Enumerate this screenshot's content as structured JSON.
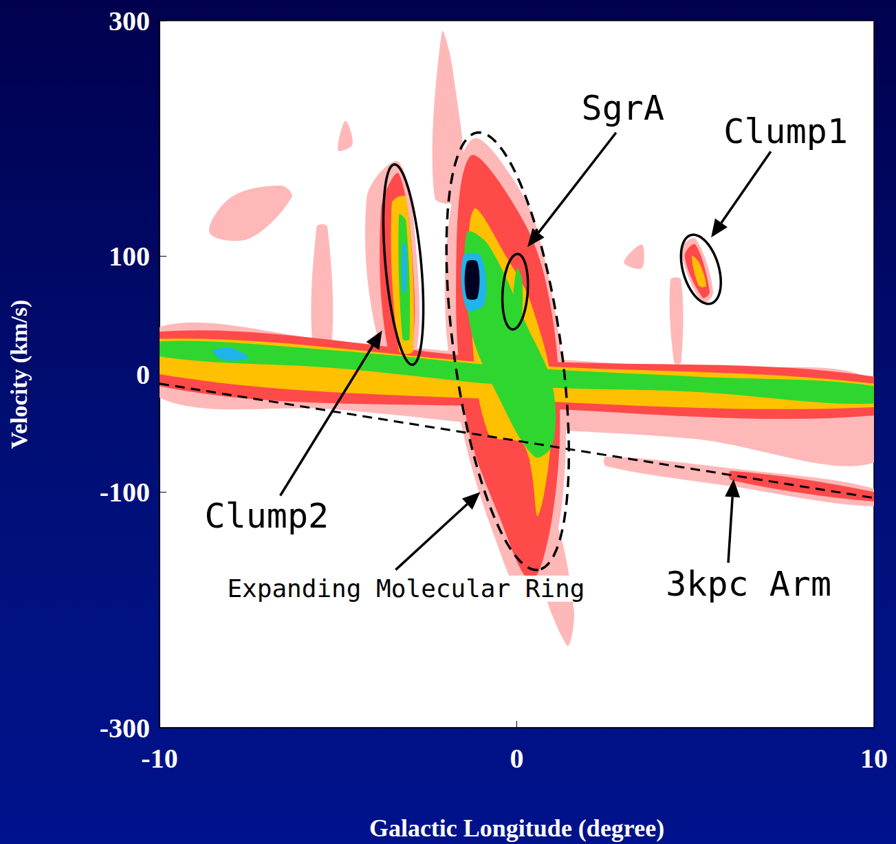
{
  "chart_data": {
    "type": "contour",
    "xlabel": "Galactic Longitude (degree)",
    "ylabel": "Velocity (km/s)",
    "xlim": [
      -10,
      10
    ],
    "ylim": [
      -300,
      300
    ],
    "xticks": [
      -10,
      0,
      10
    ],
    "yticks": [
      -300,
      -100,
      0,
      100,
      300
    ],
    "grid": false,
    "levels": [
      {
        "level": 1,
        "color": "#ffb8b8"
      },
      {
        "level": 2,
        "color": "#ff4a4a"
      },
      {
        "level": 3,
        "color": "#ffc000"
      },
      {
        "level": 4,
        "color": "#2fd62f"
      },
      {
        "level": 5,
        "color": "#1fb4ea"
      },
      {
        "level": 6,
        "color": "#000022"
      }
    ],
    "regions": [
      {
        "level": 1,
        "points": [
          [
            -10,
            40
          ],
          [
            -5,
            28
          ],
          [
            0,
            15
          ],
          [
            5,
            5
          ],
          [
            10,
            -5
          ],
          [
            10,
            -75
          ],
          [
            5,
            -55
          ],
          [
            0,
            -45
          ],
          [
            -5,
            -30
          ],
          [
            -10,
            -20
          ]
        ]
      },
      {
        "level": 1,
        "points": [
          [
            -1.2,
            200
          ],
          [
            -0.2,
            170
          ],
          [
            0.6,
            120
          ],
          [
            1.3,
            0
          ],
          [
            1.3,
            -100
          ],
          [
            0.8,
            -170
          ],
          [
            0.2,
            -190
          ],
          [
            -0.6,
            -140
          ],
          [
            -1.5,
            -50
          ],
          [
            -2,
            50
          ],
          [
            -1.8,
            150
          ]
        ]
      },
      {
        "level": 1,
        "points": [
          [
            -2.3,
            150
          ],
          [
            -2.1,
            290
          ],
          [
            -1.8,
            260
          ],
          [
            -1.5,
            150
          ]
        ]
      },
      {
        "level": 1,
        "points": [
          [
            0.5,
            -150
          ],
          [
            1.4,
            -230
          ],
          [
            1.6,
            -200
          ],
          [
            1.0,
            -120
          ]
        ]
      },
      {
        "level": 1,
        "points": [
          [
            -4.2,
            150
          ],
          [
            -3.3,
            180
          ],
          [
            -2.8,
            100
          ],
          [
            -2.9,
            10
          ],
          [
            -3.8,
            20
          ]
        ]
      },
      {
        "level": 1,
        "points": [
          [
            4.6,
            105
          ],
          [
            5.0,
            115
          ],
          [
            5.5,
            70
          ],
          [
            5.2,
            60
          ]
        ]
      },
      {
        "level": 1,
        "points": [
          [
            4.3,
            80
          ],
          [
            4.6,
            80
          ],
          [
            4.6,
            10
          ],
          [
            4.4,
            10
          ]
        ]
      },
      {
        "level": 1,
        "points": [
          [
            -5.6,
            125
          ],
          [
            -5.3,
            125
          ],
          [
            -5.2,
            20
          ],
          [
            -5.7,
            20
          ]
        ]
      },
      {
        "level": 1,
        "points": [
          [
            -8.6,
            120
          ],
          [
            -8.0,
            150
          ],
          [
            -6.6,
            160
          ],
          [
            -6.3,
            150
          ],
          [
            -7.5,
            115
          ]
        ]
      },
      {
        "level": 1,
        "points": [
          [
            -5.0,
            190
          ],
          [
            -4.8,
            215
          ],
          [
            -4.6,
            195
          ]
        ]
      },
      {
        "level": 1,
        "points": [
          [
            2.5,
            -70
          ],
          [
            6,
            -80
          ],
          [
            10,
            -97
          ],
          [
            10,
            -112
          ],
          [
            6,
            -95
          ],
          [
            2.5,
            -78
          ]
        ]
      },
      {
        "level": 1,
        "points": [
          [
            3.0,
            95
          ],
          [
            3.5,
            110
          ],
          [
            3.5,
            90
          ]
        ]
      },
      {
        "level": 2,
        "points": [
          [
            -10,
            36
          ],
          [
            0,
            12
          ],
          [
            10,
            -2
          ],
          [
            10,
            -35
          ],
          [
            0,
            -28
          ],
          [
            -10,
            -10
          ]
        ]
      },
      {
        "level": 2,
        "points": [
          [
            -1.3,
            185
          ],
          [
            0,
            140
          ],
          [
            0.8,
            80
          ],
          [
            1.2,
            -20
          ],
          [
            1.0,
            -120
          ],
          [
            0.4,
            -175
          ],
          [
            -0.5,
            -120
          ],
          [
            -1.4,
            -40
          ],
          [
            -1.7,
            80
          ]
        ]
      },
      {
        "level": 2,
        "points": [
          [
            -3.8,
            140
          ],
          [
            -3.3,
            170
          ],
          [
            -2.9,
            90
          ],
          [
            -3.0,
            15
          ],
          [
            -3.6,
            20
          ]
        ]
      },
      {
        "level": 2,
        "points": [
          [
            4.7,
            100
          ],
          [
            5.0,
            110
          ],
          [
            5.4,
            70
          ],
          [
            5.2,
            65
          ]
        ]
      },
      {
        "level": 2,
        "points": [
          [
            6,
            -82
          ],
          [
            10,
            -100
          ],
          [
            10,
            -108
          ],
          [
            6,
            -90
          ]
        ]
      },
      {
        "level": 3,
        "points": [
          [
            -10,
            30
          ],
          [
            0,
            8
          ],
          [
            10,
            -8
          ],
          [
            10,
            -28
          ],
          [
            0,
            -22
          ],
          [
            -10,
            0
          ]
        ]
      },
      {
        "level": 3,
        "points": [
          [
            -1.2,
            140
          ],
          [
            -0.3,
            100
          ],
          [
            0.4,
            60
          ],
          [
            1.0,
            -20
          ],
          [
            0.6,
            -120
          ],
          [
            0.2,
            -60
          ],
          [
            -0.8,
            -50
          ],
          [
            -1.3,
            60
          ]
        ]
      },
      {
        "level": 3,
        "points": [
          [
            -3.5,
            145
          ],
          [
            -3.1,
            150
          ],
          [
            -2.9,
            20
          ],
          [
            -3.3,
            20
          ]
        ]
      },
      {
        "level": 3,
        "points": [
          [
            4.9,
            100
          ],
          [
            5.1,
            95
          ],
          [
            5.3,
            75
          ],
          [
            5.1,
            75
          ]
        ]
      },
      {
        "level": 4,
        "points": [
          [
            -10,
            28
          ],
          [
            -5,
            20
          ],
          [
            0,
            6
          ],
          [
            5,
            -2
          ],
          [
            10,
            -10
          ],
          [
            10,
            -25
          ],
          [
            5,
            -15
          ],
          [
            0,
            -10
          ],
          [
            -5,
            5
          ],
          [
            -10,
            15
          ]
        ]
      },
      {
        "level": 4,
        "points": [
          [
            -1.4,
            120
          ],
          [
            -0.8,
            110
          ],
          [
            0.3,
            40
          ],
          [
            1.0,
            -10
          ],
          [
            1.0,
            -60
          ],
          [
            0.5,
            -70
          ],
          [
            -0.5,
            -20
          ],
          [
            -1.3,
            40
          ]
        ]
      },
      {
        "level": 4,
        "points": [
          [
            -3.3,
            135
          ],
          [
            -3.1,
            130
          ],
          [
            -3.0,
            30
          ],
          [
            -3.2,
            30
          ]
        ]
      },
      {
        "level": 4,
        "points": [
          [
            0,
            90
          ],
          [
            0.15,
            80
          ],
          [
            0.1,
            40
          ],
          [
            -0.1,
            50
          ]
        ]
      },
      {
        "level": 5,
        "points": [
          [
            -8.5,
            20
          ],
          [
            -8.0,
            22
          ],
          [
            -7.5,
            14
          ],
          [
            -8.2,
            12
          ]
        ]
      },
      {
        "level": 5,
        "points": [
          [
            -1.5,
            100
          ],
          [
            -1.0,
            100
          ],
          [
            -0.9,
            60
          ],
          [
            -1.4,
            55
          ]
        ]
      },
      {
        "level": 5,
        "points": [
          [
            -3.2,
            110
          ],
          [
            -3.1,
            110
          ],
          [
            -3.1,
            70
          ],
          [
            -3.2,
            70
          ]
        ]
      },
      {
        "level": 6,
        "points": [
          [
            -1.4,
            95
          ],
          [
            -1.1,
            95
          ],
          [
            -1.1,
            65
          ],
          [
            -1.4,
            65
          ]
        ]
      }
    ],
    "ellipses": [
      {
        "top": [
          -1.11,
          205
        ],
        "bottom": [
          0.6,
          -166
        ],
        "half_width": 1.5,
        "line_style": "dashed"
      },
      {
        "top": [
          -3.43,
          178
        ],
        "bottom": [
          -2.92,
          8
        ],
        "half_width": 0.5,
        "line_style": "solid"
      },
      {
        "top": [
          0.03,
          102
        ],
        "bottom": [
          -0.12,
          38
        ],
        "half_width": 0.35,
        "line_style": "solid"
      },
      {
        "top": [
          4.87,
          118
        ],
        "bottom": [
          5.44,
          60
        ],
        "half_width": 0.5,
        "line_style": "solid"
      }
    ],
    "lines": [
      {
        "points": [
          [
            -10,
            -8
          ],
          [
            10,
            -105
          ]
        ],
        "line_style": "dashed"
      }
    ],
    "annotations": [
      {
        "text": "SgrA",
        "position": [
          2.97,
          226
        ],
        "arrow_from": [
          2.78,
          205
        ],
        "arrow_to": [
          0.3,
          108
        ]
      },
      {
        "text": "Clump1",
        "position": [
          7.53,
          206
        ],
        "arrow_from": [
          7.11,
          189
        ],
        "arrow_to": [
          5.44,
          116
        ]
      },
      {
        "text": "Clump2",
        "position": [
          -7.0,
          -120
        ],
        "arrow_from": [
          -6.62,
          -103
        ],
        "arrow_to": [
          -3.77,
          37
        ]
      },
      {
        "text": "Expanding Molecular Ring",
        "position": [
          -3.1,
          -182
        ],
        "arrow_from": [
          -3.39,
          -166
        ],
        "arrow_to": [
          -1.02,
          -100
        ]
      },
      {
        "text": "3kpc Arm",
        "position": [
          6.49,
          -178
        ],
        "arrow_from": [
          5.92,
          -160
        ],
        "arrow_to": [
          6.07,
          -89
        ]
      }
    ]
  }
}
